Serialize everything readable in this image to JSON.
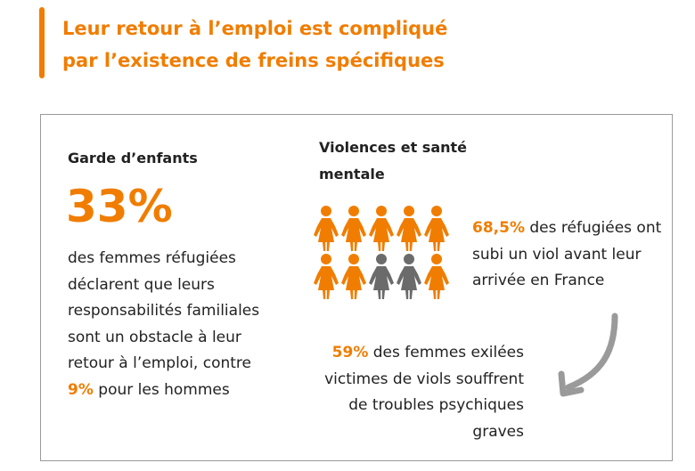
{
  "header": {
    "title_line1": "Leur retour à l’emploi est compliqué",
    "title_line2": "par l’existence de freins spécifiques"
  },
  "left": {
    "heading": "Garde d’enfants",
    "stat": "33%",
    "text_before": "des femmes réfugiées déclarent que leurs responsabilités familiales sont un obstacle à leur retour à l’emploi, contre ",
    "highlight": "9%",
    "text_after": " pour les hommes"
  },
  "right": {
    "heading": "Violences et santé mentale",
    "stat1": "68,5%",
    "text1": " des réfugiées ont subi un viol avant leur arrivée en France",
    "stat2": "59%",
    "text2": " des femmes exilées victimes de viols souffrent de troubles psychiques graves"
  }
}
